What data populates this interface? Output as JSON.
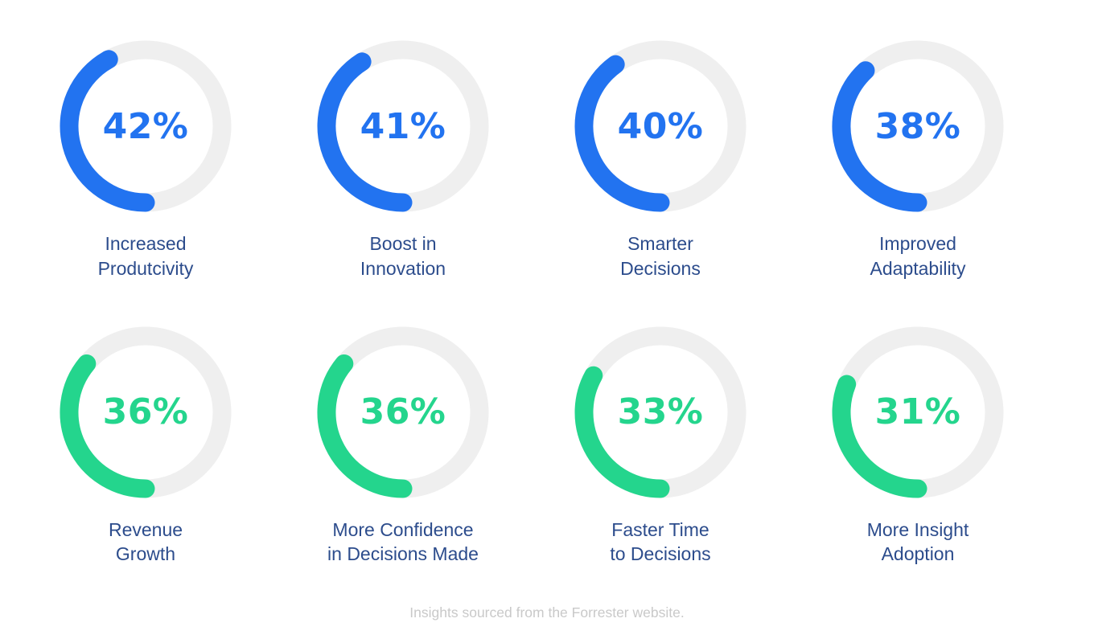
{
  "page": {
    "footer_note": "Insights sourced from the Forrester website."
  },
  "colors": {
    "page_bg": "#ffffff",
    "blue": "#2273f0",
    "green": "#24d58d",
    "track": "#efefef",
    "label_text": "#2c4c8c",
    "footer_text": "#c9c9c9"
  },
  "chart_data": {
    "type": "pie",
    "variant": "donut-gauge-grid",
    "unit": "%",
    "grid": {
      "rows": 2,
      "cols": 4
    },
    "arc": {
      "track_color": "#efefef",
      "end_reference": "bottom",
      "direction": "counterclockwise",
      "linecap": "round"
    },
    "categories": [
      "Increased Produtcivity",
      "Boost in Innovation",
      "Smarter Decisions",
      "Improved Adaptability",
      "Revenue Growth",
      "More Confidence in Decisions Made",
      "Faster Time to Decisions",
      "More Insight Adoption"
    ],
    "values": [
      42,
      41,
      40,
      38,
      36,
      36,
      33,
      31
    ],
    "donuts": [
      {
        "value": 42,
        "pct_text": "42%",
        "color": "#2273f0",
        "label": "Increased Produtcivity",
        "label_lines": [
          "Increased",
          "Produtcivity"
        ]
      },
      {
        "value": 41,
        "pct_text": "41%",
        "color": "#2273f0",
        "label": "Boost in Innovation",
        "label_lines": [
          "Boost in",
          "Innovation"
        ]
      },
      {
        "value": 40,
        "pct_text": "40%",
        "color": "#2273f0",
        "label": "Smarter Decisions",
        "label_lines": [
          "Smarter",
          "Decisions"
        ]
      },
      {
        "value": 38,
        "pct_text": "38%",
        "color": "#2273f0",
        "label": "Improved Adaptability",
        "label_lines": [
          "Improved",
          "Adaptability"
        ]
      },
      {
        "value": 36,
        "pct_text": "36%",
        "color": "#24d58d",
        "label": "Revenue Growth",
        "label_lines": [
          "Revenue",
          "Growth"
        ]
      },
      {
        "value": 36,
        "pct_text": "36%",
        "color": "#24d58d",
        "label": "More Confidence in Decisions Made",
        "label_lines": [
          "More Confidence",
          "in Decisions Made"
        ]
      },
      {
        "value": 33,
        "pct_text": "33%",
        "color": "#24d58d",
        "label": "Faster Time to Decisions",
        "label_lines": [
          "Faster Time",
          "to Decisions"
        ]
      },
      {
        "value": 31,
        "pct_text": "31%",
        "color": "#24d58d",
        "label": "More Insight Adoption",
        "label_lines": [
          "More Insight",
          "Adoption"
        ]
      }
    ]
  }
}
